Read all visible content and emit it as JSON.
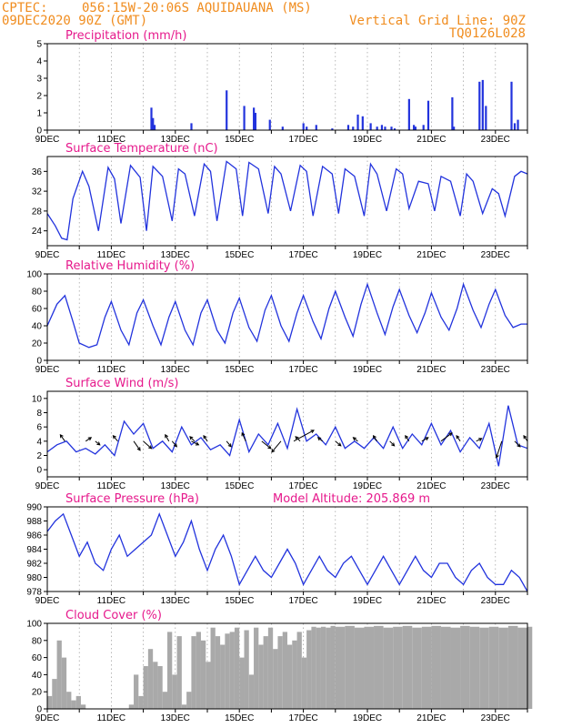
{
  "header": {
    "source": "CPTEC:",
    "location": "056:15W-20:06S  AQUIDAUANA (MS)",
    "run": "09DEC2020 90Z (GMT)",
    "grid_note": "Vertical Grid Line: 90Z",
    "model_code": "TQ0126L028"
  },
  "colors": {
    "header": "#f08c1e",
    "title": "#e6198c",
    "series": "#2233dd",
    "cloud": "#a9a9a9",
    "arrow": "#000000"
  },
  "x_tick_labels": [
    "9DEC",
    "11DEC",
    "13DEC",
    "15DEC",
    "17DEC",
    "19DEC",
    "21DEC",
    "23DEC"
  ],
  "chart_data": [
    {
      "id": "precip",
      "type": "bar",
      "title": "Precipitation (mm/h)",
      "ylim": [
        0,
        5
      ],
      "yticks": [
        0,
        1,
        2,
        3,
        4,
        5
      ],
      "xrange_days": [
        0,
        15
      ],
      "x": [
        3.25,
        3.3,
        3.35,
        4.5,
        5.6,
        6.15,
        6.45,
        6.5,
        6.95,
        7.35,
        8.0,
        8.1,
        8.4,
        8.9,
        9.4,
        9.55,
        9.7,
        9.85,
        10.1,
        10.3,
        10.45,
        10.55,
        10.75,
        10.85,
        11.3,
        11.45,
        11.5,
        11.75,
        11.9,
        12.65,
        12.7,
        13.5,
        13.6,
        13.7,
        14.5,
        14.6,
        14.7
      ],
      "values": [
        1.3,
        0.7,
        0.3,
        0.4,
        2.3,
        1.4,
        1.3,
        1.0,
        0.6,
        0.2,
        0.4,
        0.2,
        0.3,
        0.1,
        0.3,
        0.2,
        0.9,
        0.8,
        0.4,
        0.2,
        0.3,
        0.2,
        0.2,
        0.1,
        1.8,
        0.3,
        0.2,
        0.3,
        1.7,
        1.9,
        0.2,
        2.8,
        2.9,
        1.4,
        2.8,
        0.4,
        0.6
      ]
    },
    {
      "id": "temp",
      "type": "line",
      "title": "Surface Temperature (nC)",
      "ylim": [
        21,
        39
      ],
      "yticks": [
        24,
        28,
        32,
        36
      ],
      "xrange_days": [
        0,
        15
      ],
      "x": [
        0,
        0.25,
        0.45,
        0.62,
        0.8,
        1.1,
        1.3,
        1.6,
        1.9,
        2.1,
        2.3,
        2.6,
        2.9,
        3.1,
        3.3,
        3.6,
        3.9,
        4.1,
        4.3,
        4.6,
        4.9,
        5.1,
        5.3,
        5.6,
        5.9,
        6.1,
        6.3,
        6.6,
        6.9,
        7.1,
        7.3,
        7.6,
        7.9,
        8.1,
        8.3,
        8.6,
        8.9,
        9.1,
        9.3,
        9.6,
        9.9,
        10.1,
        10.3,
        10.6,
        10.9,
        11.1,
        11.3,
        11.6,
        11.9,
        12.1,
        12.3,
        12.6,
        12.9,
        13.1,
        13.3,
        13.6,
        13.9,
        14.1,
        14.3,
        14.6,
        14.8,
        15.0
      ],
      "values": [
        27.5,
        25.0,
        22.5,
        22.2,
        30.5,
        36.0,
        33.0,
        24.0,
        36.8,
        34.5,
        25.5,
        37.2,
        34.8,
        24.0,
        37.0,
        35.0,
        26.0,
        36.5,
        35.5,
        27.0,
        37.5,
        36.0,
        26.0,
        38.0,
        36.5,
        27.0,
        37.8,
        36.5,
        27.5,
        37.0,
        35.5,
        28.0,
        37.2,
        36.0,
        27.0,
        37.0,
        35.5,
        27.5,
        36.5,
        35.0,
        27.0,
        37.5,
        35.5,
        28.0,
        36.5,
        35.5,
        28.5,
        34.0,
        33.5,
        28.0,
        35.0,
        34.0,
        27.0,
        35.5,
        34.0,
        27.5,
        32.5,
        31.5,
        27.0,
        35.0,
        36.0,
        35.5
      ]
    },
    {
      "id": "rh",
      "type": "line",
      "title": "Relative Humidity (%)",
      "ylim": [
        0,
        100
      ],
      "yticks": [
        0,
        20,
        40,
        60,
        80,
        100
      ],
      "xrange_days": [
        0,
        15
      ],
      "x": [
        0,
        0.3,
        0.55,
        0.8,
        1.0,
        1.3,
        1.55,
        1.8,
        2.0,
        2.3,
        2.55,
        2.8,
        3.0,
        3.3,
        3.55,
        3.8,
        4.0,
        4.3,
        4.55,
        4.8,
        5.0,
        5.3,
        5.55,
        5.8,
        6.0,
        6.3,
        6.55,
        6.8,
        7.0,
        7.3,
        7.55,
        7.8,
        8.0,
        8.3,
        8.55,
        8.8,
        9.0,
        9.3,
        9.55,
        9.8,
        10.0,
        10.3,
        10.55,
        10.8,
        11.0,
        11.3,
        11.55,
        11.8,
        12.0,
        12.3,
        12.55,
        12.8,
        13.0,
        13.3,
        13.55,
        13.8,
        14.0,
        14.3,
        14.55,
        14.8,
        15.0
      ],
      "values": [
        40,
        65,
        75,
        45,
        20,
        15,
        18,
        50,
        68,
        35,
        18,
        55,
        70,
        40,
        18,
        50,
        68,
        35,
        18,
        55,
        70,
        35,
        20,
        55,
        72,
        38,
        22,
        58,
        75,
        40,
        22,
        55,
        75,
        45,
        25,
        60,
        80,
        50,
        28,
        65,
        88,
        55,
        30,
        62,
        82,
        52,
        32,
        55,
        78,
        50,
        35,
        60,
        88,
        58,
        38,
        65,
        82,
        52,
        38,
        42,
        42
      ]
    },
    {
      "id": "wind",
      "type": "line",
      "title": "Surface Wind (m/s)",
      "ylim": [
        -1,
        11
      ],
      "yticks": [
        0,
        2,
        4,
        6,
        8,
        10
      ],
      "xrange_days": [
        0,
        15
      ],
      "x": [
        0,
        0.3,
        0.6,
        0.9,
        1.2,
        1.5,
        1.8,
        2.1,
        2.4,
        2.7,
        3.0,
        3.3,
        3.6,
        3.9,
        4.2,
        4.5,
        4.8,
        5.1,
        5.4,
        5.7,
        6.0,
        6.3,
        6.6,
        6.9,
        7.2,
        7.5,
        7.8,
        8.1,
        8.4,
        8.7,
        9.0,
        9.3,
        9.6,
        9.9,
        10.2,
        10.5,
        10.8,
        11.1,
        11.4,
        11.7,
        12.0,
        12.3,
        12.6,
        12.9,
        13.2,
        13.5,
        13.8,
        14.1,
        14.4,
        14.7,
        15.0
      ],
      "values": [
        2.5,
        3.5,
        4.0,
        2.5,
        3.0,
        2.2,
        3.5,
        2.0,
        6.8,
        5.0,
        6.5,
        3.0,
        4.0,
        2.5,
        6.0,
        3.5,
        4.5,
        2.8,
        3.5,
        2.0,
        7.0,
        2.5,
        5.0,
        3.5,
        6.5,
        3.0,
        8.5,
        4.0,
        5.0,
        3.5,
        6.0,
        3.0,
        4.0,
        3.0,
        4.5,
        3.0,
        6.0,
        3.0,
        5.0,
        3.5,
        6.5,
        3.5,
        5.5,
        2.5,
        4.5,
        3.0,
        6.5,
        0.5,
        9.0,
        3.5,
        3.0
      ],
      "arrows": [
        {
          "x": 0.55,
          "dx": -5,
          "dy": -7
        },
        {
          "x": 1.2,
          "dx": 6,
          "dy": -4
        },
        {
          "x": 1.5,
          "dx": 5,
          "dy": 4
        },
        {
          "x": 2.2,
          "dx": -5,
          "dy": -6
        },
        {
          "x": 2.7,
          "dx": 7,
          "dy": 10
        },
        {
          "x": 3.0,
          "dx": 9,
          "dy": 8
        },
        {
          "x": 3.8,
          "dx": -4,
          "dy": -7
        },
        {
          "x": 3.9,
          "dx": 5,
          "dy": 6
        },
        {
          "x": 4.5,
          "dx": 8,
          "dy": 4
        },
        {
          "x": 4.6,
          "dx": -5,
          "dy": -5
        },
        {
          "x": 5.0,
          "dx": -4,
          "dy": -6
        },
        {
          "x": 5.6,
          "dx": 5,
          "dy": 6
        },
        {
          "x": 6.2,
          "dx": -4,
          "dy": -9
        },
        {
          "x": 6.7,
          "dx": 10,
          "dy": 8
        },
        {
          "x": 7.3,
          "dx": -10,
          "dy": 12
        },
        {
          "x": 7.7,
          "dx": 22,
          "dy": -12
        },
        {
          "x": 7.9,
          "dx": -5,
          "dy": -5
        },
        {
          "x": 8.6,
          "dx": -5,
          "dy": -4
        },
        {
          "x": 9.0,
          "dx": 6,
          "dy": 5
        },
        {
          "x": 9.7,
          "dx": -5,
          "dy": -4
        },
        {
          "x": 10.3,
          "dx": -4,
          "dy": -6
        },
        {
          "x": 10.7,
          "dx": 5,
          "dy": 5
        },
        {
          "x": 11.3,
          "dx": -4,
          "dy": -6
        },
        {
          "x": 11.7,
          "dx": 7,
          "dy": -4
        },
        {
          "x": 12.3,
          "dx": 12,
          "dy": -9
        },
        {
          "x": 12.9,
          "dx": -4,
          "dy": -6
        },
        {
          "x": 13.4,
          "dx": 6,
          "dy": -3
        },
        {
          "x": 14.2,
          "dx": -6,
          "dy": 18
        },
        {
          "x": 14.6,
          "dx": 6,
          "dy": 6
        },
        {
          "x": 15.0,
          "dx": -4,
          "dy": -6
        }
      ]
    },
    {
      "id": "pres",
      "type": "line",
      "title": "Surface Pressure (hPa)",
      "annotation": "Model Altitude: 205.869 m",
      "ylim": [
        978,
        990
      ],
      "yticks": [
        978,
        980,
        982,
        984,
        986,
        988,
        990
      ],
      "xrange_days": [
        0,
        15
      ],
      "x": [
        0,
        0.25,
        0.5,
        0.75,
        1.0,
        1.25,
        1.5,
        1.75,
        2.0,
        2.25,
        2.5,
        2.75,
        3.0,
        3.25,
        3.5,
        3.75,
        4.0,
        4.25,
        4.5,
        4.75,
        5.0,
        5.25,
        5.5,
        5.75,
        6.0,
        6.25,
        6.5,
        6.75,
        7.0,
        7.25,
        7.5,
        7.75,
        8.0,
        8.25,
        8.5,
        8.75,
        9.0,
        9.25,
        9.5,
        9.75,
        10.0,
        10.25,
        10.5,
        10.75,
        11.0,
        11.25,
        11.5,
        11.75,
        12.0,
        12.25,
        12.5,
        12.75,
        13.0,
        13.25,
        13.5,
        13.75,
        14.0,
        14.25,
        14.5,
        14.75,
        15.0
      ],
      "values": [
        986.5,
        988,
        989,
        986,
        983,
        985,
        982,
        981,
        984,
        986,
        983,
        984,
        985,
        986,
        989,
        986,
        983,
        985,
        988,
        984,
        981,
        984,
        986,
        983,
        979,
        981,
        983,
        981,
        980,
        982,
        984,
        982,
        979,
        981,
        983,
        981,
        980,
        982,
        983,
        981,
        979,
        981,
        983,
        981,
        979,
        981,
        983,
        981,
        980,
        982,
        982,
        980,
        979,
        981,
        982,
        980,
        979,
        979,
        981,
        980,
        978
      ]
    },
    {
      "id": "cloud",
      "type": "area",
      "title": "Cloud Cover (%)",
      "ylim": [
        0,
        100
      ],
      "yticks": [
        0,
        20,
        40,
        60,
        80,
        100
      ],
      "xrange_days": [
        0,
        15
      ],
      "x": [
        0,
        0.15,
        0.3,
        0.45,
        0.6,
        0.75,
        0.9,
        1.05,
        1.2,
        1.35,
        1.5,
        1.65,
        1.8,
        1.95,
        2.1,
        2.25,
        2.4,
        2.55,
        2.7,
        2.85,
        3.0,
        3.15,
        3.3,
        3.45,
        3.6,
        3.75,
        3.9,
        4.05,
        4.2,
        4.35,
        4.5,
        4.65,
        4.8,
        4.95,
        5.1,
        5.25,
        5.4,
        5.55,
        5.7,
        5.85,
        6.0,
        6.15,
        6.3,
        6.45,
        6.6,
        6.75,
        6.9,
        7.05,
        7.2,
        7.35,
        7.5,
        7.65,
        7.8,
        7.95,
        8.1,
        8.25,
        8.4,
        8.55,
        8.7,
        8.85,
        9.0,
        9.3,
        9.6,
        9.9,
        10.2,
        10.5,
        10.8,
        11.1,
        11.4,
        11.7,
        12.0,
        12.3,
        12.6,
        12.9,
        13.2,
        13.5,
        13.8,
        14.1,
        14.4,
        14.7,
        15.0
      ],
      "values": [
        15,
        35,
        80,
        60,
        20,
        10,
        15,
        5,
        0,
        0,
        0,
        0,
        0,
        0,
        0,
        0,
        0,
        5,
        40,
        15,
        50,
        70,
        55,
        50,
        20,
        90,
        40,
        85,
        5,
        20,
        85,
        90,
        80,
        55,
        95,
        85,
        75,
        88,
        90,
        95,
        60,
        92,
        40,
        95,
        75,
        85,
        95,
        70,
        85,
        90,
        75,
        80,
        90,
        60,
        92,
        96,
        95,
        96,
        95,
        97,
        96,
        97,
        95,
        96,
        97,
        95,
        96,
        97,
        95,
        96,
        97,
        96,
        95,
        97,
        96,
        95,
        96,
        95,
        97,
        95,
        96
      ]
    }
  ]
}
